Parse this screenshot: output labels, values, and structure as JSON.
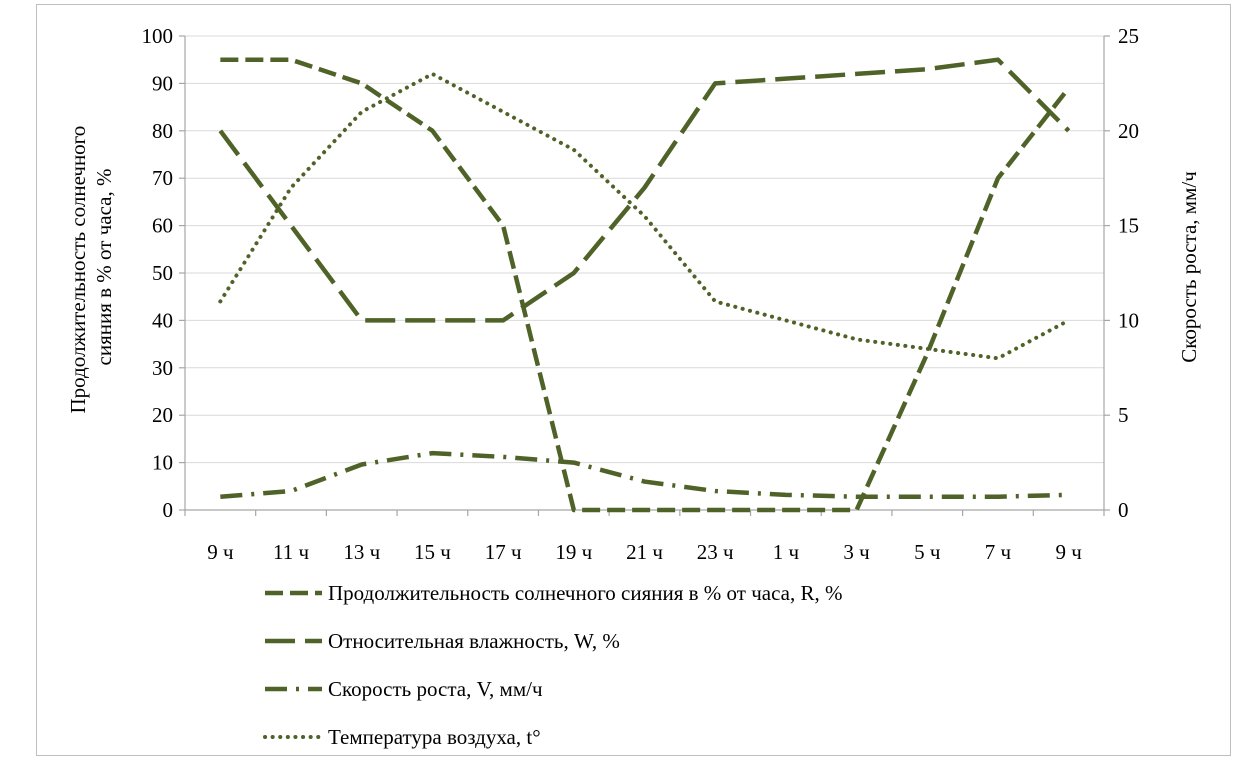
{
  "chart_data": {
    "type": "line",
    "categories": [
      "9 ч",
      "11 ч",
      "13 ч",
      "15 ч",
      "17 ч",
      "19 ч",
      "21 ч",
      "23 ч",
      "1 ч",
      "3 ч",
      "5 ч",
      "7 ч",
      "9 ч"
    ],
    "ylabel_left": "Продолжительность солнечного сияния в % от часа, %",
    "ylabel_right": "Скорость роста, мм/ч",
    "ylim_left": [
      0,
      100
    ],
    "ylim_right": [
      0,
      25
    ],
    "yticks_left": [
      0,
      10,
      20,
      30,
      40,
      50,
      60,
      70,
      80,
      90,
      100
    ],
    "yticks_right": [
      0,
      5,
      10,
      15,
      20,
      25
    ],
    "grid": "horizontal",
    "legend_position": "bottom",
    "color": "#4f6228",
    "series": [
      {
        "name": "Продолжительность солнечного сияния в % от часа, R, %",
        "axis": "left",
        "style": "medium-dash",
        "points": [
          [
            0,
            95
          ],
          [
            1,
            95
          ],
          [
            2,
            90
          ],
          [
            3,
            80
          ],
          [
            4,
            60
          ],
          [
            5,
            0
          ],
          [
            6,
            0
          ],
          [
            7,
            0
          ],
          [
            8,
            0
          ],
          [
            9,
            0
          ],
          [
            10,
            33
          ],
          [
            11,
            70
          ],
          [
            12,
            89
          ]
        ]
      },
      {
        "name": "Относительная влажность, W, %",
        "axis": "left",
        "style": "long-dash",
        "points": [
          [
            0,
            80
          ],
          [
            1,
            60
          ],
          [
            2,
            40
          ],
          [
            3,
            40
          ],
          [
            4,
            40
          ],
          [
            5,
            50
          ],
          [
            6,
            68
          ],
          [
            7,
            90
          ],
          [
            8,
            91
          ],
          [
            9,
            92
          ],
          [
            10,
            93
          ],
          [
            11,
            95
          ],
          [
            12,
            80
          ]
        ]
      },
      {
        "name": "Скорость роста, V, мм/ч",
        "axis": "right",
        "style": "dash-dot",
        "points": [
          [
            0,
            0.7
          ],
          [
            1,
            1
          ],
          [
            2,
            2.4
          ],
          [
            3,
            3
          ],
          [
            4,
            2.8
          ],
          [
            5,
            2.5
          ],
          [
            6,
            1.5
          ],
          [
            7,
            1
          ],
          [
            8,
            0.8
          ],
          [
            9,
            0.7
          ],
          [
            10,
            0.7
          ],
          [
            11,
            0.7
          ],
          [
            12,
            0.8
          ]
        ]
      },
      {
        "name": "Температура воздуха, t°",
        "axis": "right",
        "style": "dotted",
        "points": [
          [
            0,
            11
          ],
          [
            1,
            17
          ],
          [
            2,
            21
          ],
          [
            3,
            23
          ],
          [
            4,
            21
          ],
          [
            5,
            19
          ],
          [
            6,
            15.5
          ],
          [
            7,
            11
          ],
          [
            8,
            10
          ],
          [
            9,
            9
          ],
          [
            10,
            8.5
          ],
          [
            11,
            8
          ],
          [
            12,
            10
          ]
        ]
      }
    ]
  }
}
